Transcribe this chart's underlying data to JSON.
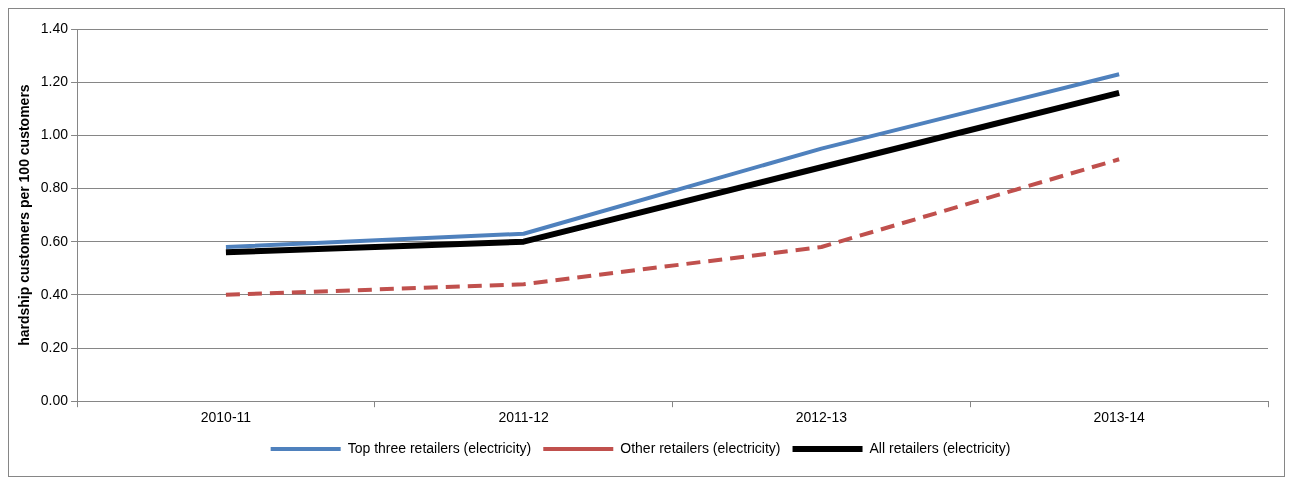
{
  "chart_data": {
    "type": "line",
    "ylabel": "hardship customers per 100 customers",
    "categories": [
      "2010-11",
      "2011-12",
      "2012-13",
      "2013-14"
    ],
    "series": [
      {
        "name": "Top three retailers (electricity)",
        "color": "#4f81bd",
        "values": [
          0.58,
          0.63,
          0.95,
          1.23
        ],
        "line_style": "solid"
      },
      {
        "name": "Other retailers (electricity)",
        "color": "#c0504d",
        "values": [
          0.4,
          0.44,
          0.58,
          0.91
        ],
        "line_style": "dashed"
      },
      {
        "name": "All retailers (electricity)",
        "color": "#000000",
        "values": [
          0.56,
          0.6,
          0.88,
          1.16
        ],
        "line_style": "solid"
      }
    ],
    "ylim": [
      0,
      1.4
    ],
    "yticks": [
      {
        "value": 0,
        "label": "0.00"
      },
      {
        "value": 0.2,
        "label": "0.20"
      },
      {
        "value": 0.4,
        "label": "0.40"
      },
      {
        "value": 0.6,
        "label": "0.60"
      },
      {
        "value": 0.8,
        "label": "0.80"
      },
      {
        "value": 1,
        "label": "1.00"
      },
      {
        "value": 1.2,
        "label": "1.20"
      },
      {
        "value": 1.4,
        "label": "1.40"
      }
    ],
    "grid": "y",
    "legend": "bottom",
    "marker": "none"
  }
}
